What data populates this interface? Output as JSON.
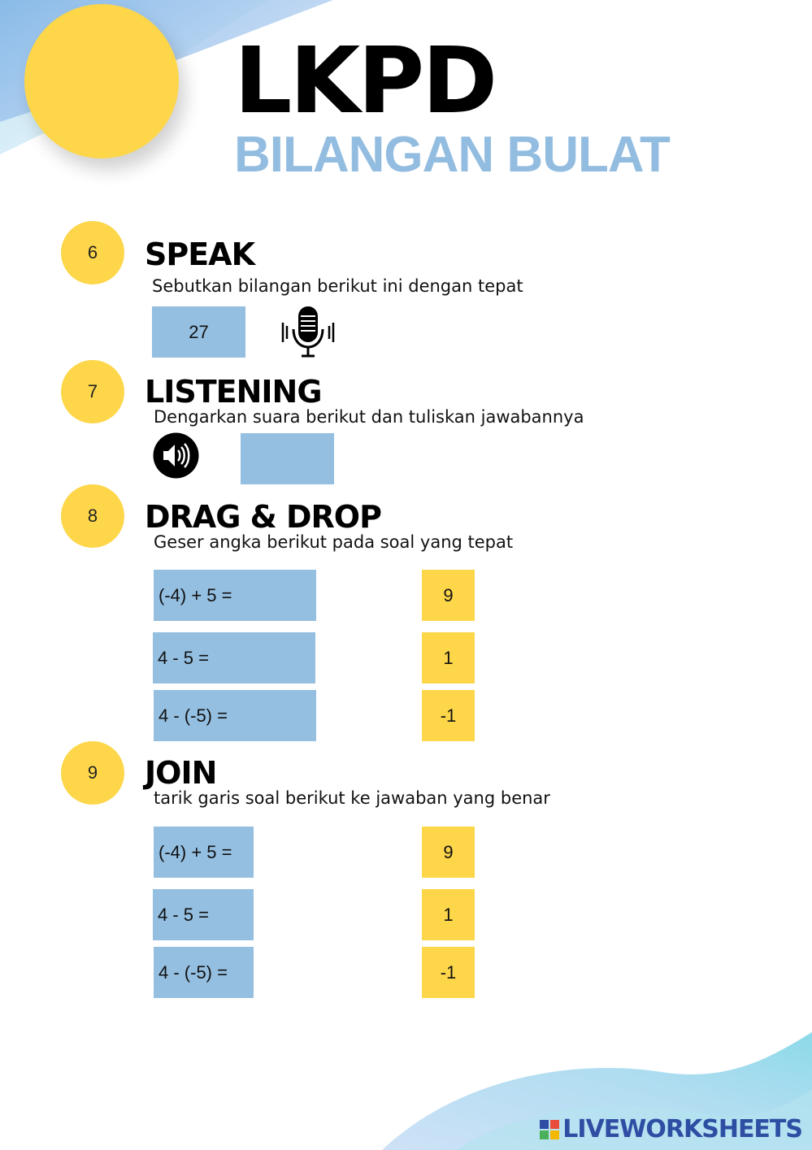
{
  "header": {
    "title": "LKPD",
    "subtitle": "BILANGAN BULAT"
  },
  "colors": {
    "accent_yellow": "#fdd64a",
    "accent_blue": "#94bfe1",
    "title_blue": "#93bde0"
  },
  "sections": [
    {
      "number": "6",
      "title": "SPEAK",
      "instruction": "Sebutkan bilangan berikut ini dengan tepat",
      "prompt_value": "27",
      "icon": "microphone-icon"
    },
    {
      "number": "7",
      "title": "LISTENING",
      "instruction": "Dengarkan suara berikut dan tuliskan jawabannya",
      "answer_value": "",
      "icon": "speaker-icon"
    },
    {
      "number": "8",
      "title": "DRAG & DROP",
      "instruction": "Geser angka berikut pada soal yang tepat",
      "questions": [
        "(-4) + 5 =",
        "4 - 5 =",
        "4 - (-5) ="
      ],
      "answers": [
        "9",
        "1",
        "-1"
      ]
    },
    {
      "number": "9",
      "title": "JOIN",
      "instruction": "tarik garis soal berikut ke jawaban yang benar",
      "questions": [
        "(-4) + 5 =",
        "4 - 5 =",
        "4 - (-5) ="
      ],
      "answers": [
        "9",
        "1",
        "-1"
      ]
    }
  ],
  "footer": {
    "logo_text": "LIVEWORKSHEETS",
    "logo_icon": "liveworksheets-logo-icon"
  }
}
